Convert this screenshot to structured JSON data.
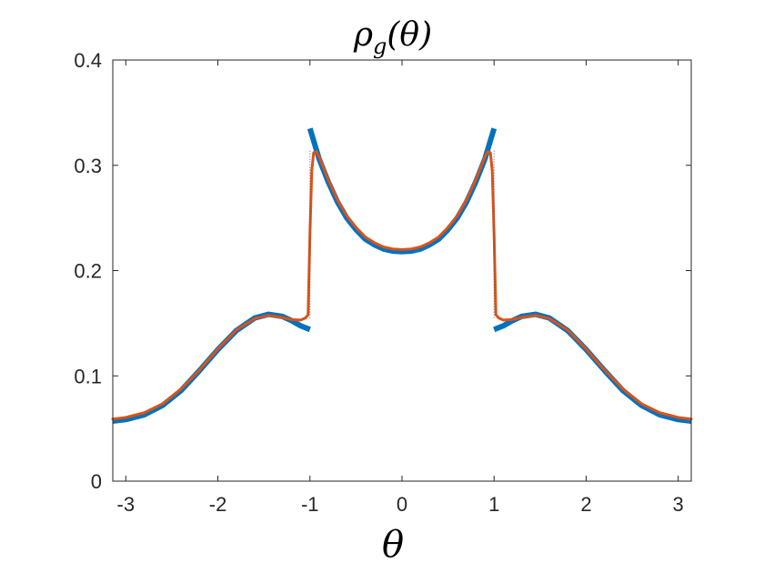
{
  "chart_data": {
    "type": "line",
    "title": {
      "main": "ρ",
      "sub": "g",
      "arg": "(θ)"
    },
    "xlabel": "θ",
    "ylabel": "",
    "xlim": [
      -3.1416,
      3.1416
    ],
    "ylim": [
      0,
      0.4
    ],
    "grid": false,
    "legend": "none",
    "x_ticks": [
      -3,
      -2,
      -1,
      0,
      1,
      2,
      3
    ],
    "x_tick_labels": [
      "-3",
      "-2",
      "-1",
      "0",
      "1",
      "2",
      "3"
    ],
    "y_ticks": [
      0,
      0.1,
      0.2,
      0.3,
      0.4
    ],
    "y_tick_labels": [
      "0",
      "0.1",
      "0.2",
      "0.3",
      "0.4"
    ],
    "series": [
      {
        "color": "#0072BD",
        "style": "thick solid segments",
        "segments": [
          {
            "x": [
              -3.1416,
              -3.0,
              -2.8,
              -2.6,
              -2.4,
              -2.2,
              -2.0,
              -1.8,
              -1.6,
              -1.45,
              -1.3,
              -1.2,
              -1.1,
              -1.0
            ],
            "y": [
              0.057,
              0.0585,
              0.063,
              0.072,
              0.086,
              0.105,
              0.125,
              0.143,
              0.155,
              0.1585,
              0.1565,
              0.1525,
              0.1475,
              0.144
            ]
          },
          {
            "x": [
              -1.0,
              -0.9,
              -0.8,
              -0.7,
              -0.6,
              -0.5,
              -0.4,
              -0.3,
              -0.2,
              -0.1,
              0.0,
              0.1,
              0.2,
              0.3,
              0.4,
              0.5,
              0.6,
              0.7,
              0.8,
              0.9,
              1.0
            ],
            "y": [
              0.335,
              0.306,
              0.284,
              0.265,
              0.25,
              0.239,
              0.23,
              0.2245,
              0.2205,
              0.2185,
              0.218,
              0.2185,
              0.2205,
              0.2245,
              0.23,
              0.239,
              0.25,
              0.265,
              0.284,
              0.306,
              0.335
            ]
          },
          {
            "x": [
              1.0,
              1.1,
              1.2,
              1.3,
              1.45,
              1.6,
              1.8,
              2.0,
              2.2,
              2.4,
              2.6,
              2.8,
              3.0,
              3.1416
            ],
            "y": [
              0.144,
              0.1475,
              0.1525,
              0.1565,
              0.1585,
              0.155,
              0.143,
              0.125,
              0.105,
              0.086,
              0.072,
              0.063,
              0.0585,
              0.057
            ]
          }
        ]
      },
      {
        "color": "#D95319",
        "style": "solid",
        "segments": [
          {
            "x": [
              -3.1416,
              -3.0,
              -2.8,
              -2.6,
              -2.4,
              -2.2,
              -2.0,
              -1.8,
              -1.6,
              -1.45,
              -1.3,
              -1.2,
              -1.1,
              -1.05,
              -1.02,
              -1.0,
              -0.98,
              -0.96,
              -0.93,
              -0.9,
              -0.8,
              -0.7,
              -0.6,
              -0.5,
              -0.4,
              -0.3,
              -0.2,
              -0.1,
              0.0,
              0.1,
              0.2,
              0.3,
              0.4,
              0.5,
              0.6,
              0.7,
              0.8,
              0.9,
              0.93,
              0.96,
              0.98,
              1.0,
              1.02,
              1.05,
              1.1,
              1.2,
              1.3,
              1.45,
              1.6,
              1.8,
              2.0,
              2.2,
              2.4,
              2.6,
              2.8,
              3.0,
              3.1416
            ],
            "y": [
              0.059,
              0.0605,
              0.065,
              0.0735,
              0.0875,
              0.1055,
              0.1255,
              0.1435,
              0.1545,
              0.1575,
              0.1555,
              0.1535,
              0.153,
              0.155,
              0.158,
              0.235,
              0.295,
              0.312,
              0.313,
              0.308,
              0.286,
              0.267,
              0.252,
              0.241,
              0.232,
              0.2265,
              0.2225,
              0.2205,
              0.22,
              0.2205,
              0.2225,
              0.2265,
              0.232,
              0.241,
              0.252,
              0.267,
              0.286,
              0.308,
              0.313,
              0.312,
              0.295,
              0.235,
              0.158,
              0.155,
              0.153,
              0.1535,
              0.1555,
              0.1575,
              0.1545,
              0.1435,
              0.1255,
              0.1055,
              0.0875,
              0.0735,
              0.065,
              0.0605,
              0.059
            ]
          }
        ]
      },
      {
        "color": "#555555",
        "style": "dotted",
        "segments": [
          {
            "x": [
              -1.0,
              -1.0
            ],
            "y": [
              0.155,
              0.315
            ]
          },
          {
            "x": [
              1.0,
              1.0
            ],
            "y": [
              0.155,
              0.315
            ]
          }
        ]
      }
    ]
  }
}
